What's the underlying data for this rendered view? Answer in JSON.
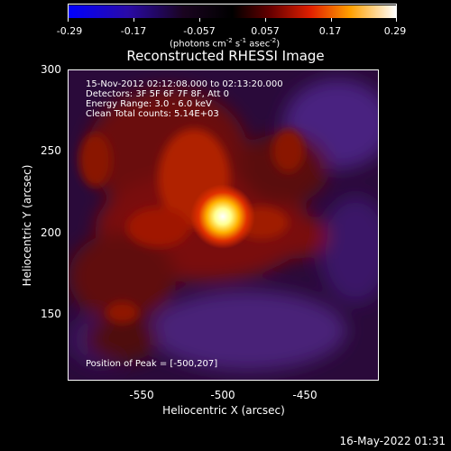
{
  "colorbar": {
    "ticks": [
      "-0.29",
      "-0.17",
      "-0.057",
      "0.057",
      "0.17",
      "0.29"
    ],
    "units_main": "(photons cm",
    "units_exp1": "-2",
    "units_mid1": " s",
    "units_exp2": "-1",
    "units_mid2": " asec",
    "units_exp3": "-2",
    "units_end": ")"
  },
  "title": "Reconstructed RHESSI Image",
  "info": {
    "line1": "15-Nov-2012 02:12:08.000 to 02:13:20.000",
    "line2": "Detectors: 3F 5F 6F 7F 8F, Att 0",
    "line3": "Energy Range: 3.0 - 6.0 keV",
    "line4": "Clean     Total counts: 5.14E+03"
  },
  "peak_label": "Position of Peak = [-500,207]",
  "axes": {
    "xlabel": "Heliocentric X (arcsec)",
    "ylabel": "Heliocentric Y (arcsec)",
    "xticks": [
      "-550",
      "-500",
      "-450"
    ],
    "yticks": [
      "300",
      "250",
      "200",
      "150"
    ]
  },
  "datestamp": "16-May-2022 01:31"
}
